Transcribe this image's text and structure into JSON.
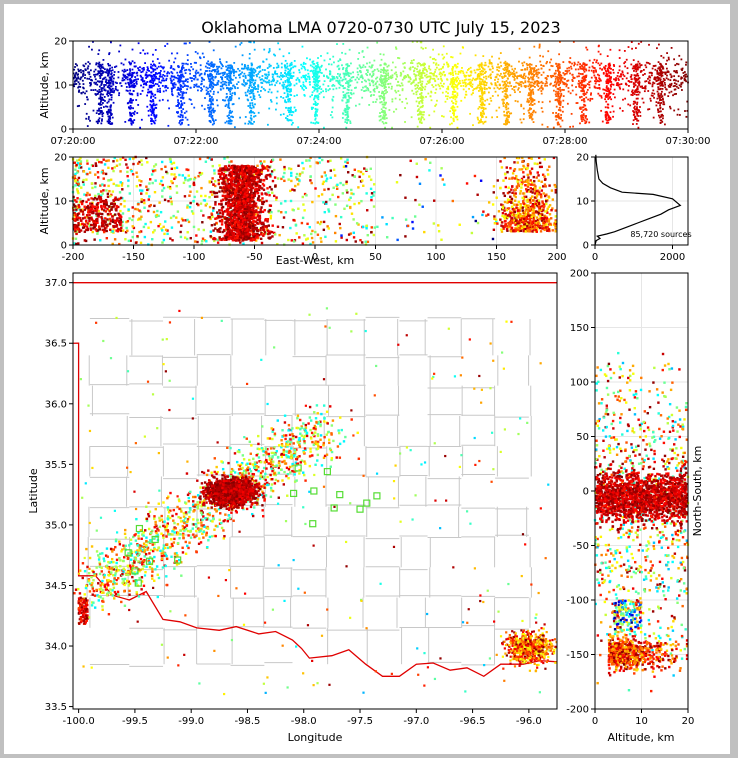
{
  "chart_data": [
    {
      "id": "time-height",
      "type": "scatter",
      "title": "Oklahoma LMA 0720-0730 UTC July 15, 2023",
      "xlabel": "",
      "ylabel": "Altitude, km",
      "x_ticks": [
        "07:20:00",
        "07:22:00",
        "07:24:00",
        "07:26:00",
        "07:28:00",
        "07:30:00"
      ],
      "x_range_minutes": [
        0,
        10
      ],
      "y_range": [
        0,
        20
      ],
      "y_ticks": [
        0,
        10,
        20
      ],
      "color_scale": "time (blue to dark red)",
      "color_stops": [
        "#00007f",
        "#0000ff",
        "#007fff",
        "#00ffff",
        "#7fff7f",
        "#ffff00",
        "#ff7f00",
        "#ff0000",
        "#7f0000"
      ],
      "vertical_streak_times": [
        0.45,
        0.6,
        0.95,
        1.3,
        1.75,
        2.25,
        2.55,
        2.9,
        3.5,
        3.95,
        4.45,
        5.05,
        5.65,
        6.2,
        6.65,
        7.05,
        7.45,
        7.9,
        8.3,
        8.7,
        9.15,
        9.55
      ]
    },
    {
      "id": "ew-height",
      "type": "scatter",
      "xlabel": "East-West, km",
      "ylabel": "Altitude, km",
      "x_range": [
        -200,
        200
      ],
      "x_ticks": [
        -200,
        -150,
        -100,
        -50,
        0,
        50,
        100,
        150,
        200
      ],
      "y_range": [
        0,
        20
      ],
      "y_ticks": [
        0,
        10,
        20
      ],
      "clusters": [
        {
          "x_center": -60,
          "x_spread": 12,
          "dense": true
        },
        {
          "x_center": 175,
          "x_spread": 15,
          "dense": true
        },
        {
          "x_center": -120,
          "x_spread": 70,
          "dense": false
        }
      ]
    },
    {
      "id": "altitude-histogram",
      "type": "line",
      "x_range": [
        0,
        2400
      ],
      "x_ticks": [
        0,
        2000
      ],
      "y_range": [
        0,
        20
      ],
      "y_ticks": [
        0,
        10,
        20
      ],
      "annotation": "85,720 sources",
      "profile": [
        [
          0,
          0
        ],
        [
          30,
          1
        ],
        [
          130,
          1.5
        ],
        [
          60,
          2
        ],
        [
          300,
          2.5
        ],
        [
          500,
          3
        ],
        [
          800,
          4
        ],
        [
          1100,
          5
        ],
        [
          1400,
          6
        ],
        [
          1700,
          7
        ],
        [
          1900,
          8
        ],
        [
          2200,
          9
        ],
        [
          2000,
          10.5
        ],
        [
          1500,
          11.5
        ],
        [
          700,
          12
        ],
        [
          400,
          13
        ],
        [
          200,
          14
        ],
        [
          100,
          15
        ],
        [
          60,
          17
        ],
        [
          30,
          19
        ],
        [
          20,
          20.5
        ]
      ]
    },
    {
      "id": "plan-view",
      "type": "scatter",
      "xlabel": "Longitude",
      "ylabel": "Latitude",
      "x_range": [
        -100.05,
        -95.75
      ],
      "x_ticks": [
        -100.0,
        -99.5,
        -99.0,
        -98.5,
        -98.0,
        -97.5,
        -97.0,
        -96.5,
        -96.0
      ],
      "y_range": [
        33.48,
        37.08
      ],
      "y_ticks": [
        33.5,
        34.0,
        34.5,
        35.0,
        35.5,
        36.0,
        36.5,
        37.0
      ],
      "stations": [
        [
          -98.05,
          35.47
        ],
        [
          -97.79,
          35.44
        ],
        [
          -98.09,
          35.26
        ],
        [
          -97.91,
          35.28
        ],
        [
          -97.68,
          35.25
        ],
        [
          -97.35,
          35.24
        ],
        [
          -97.44,
          35.18
        ],
        [
          -97.5,
          35.13
        ],
        [
          -97.73,
          35.14
        ],
        [
          -97.92,
          35.01
        ],
        [
          -99.46,
          34.97
        ],
        [
          -99.32,
          34.88
        ],
        [
          -99.56,
          34.77
        ],
        [
          -99.37,
          34.7
        ],
        [
          -99.12,
          34.71
        ],
        [
          -99.5,
          34.62
        ],
        [
          -99.47,
          34.52
        ]
      ],
      "dense_cores": [
        [
          -98.65,
          35.27
        ],
        [
          -96.05,
          33.97
        ]
      ]
    },
    {
      "id": "ns-height",
      "type": "scatter",
      "xlabel": "Altitude, km",
      "ylabel": "North-South, km",
      "x_range": [
        0,
        20
      ],
      "x_ticks": [
        0,
        10,
        20
      ],
      "y_range": [
        -200,
        200
      ],
      "y_ticks": [
        -200,
        -150,
        -100,
        -50,
        0,
        50,
        100,
        150,
        200
      ],
      "clusters": [
        {
          "y_center": -5,
          "y_spread": 12,
          "dense": true
        },
        {
          "y_center": -150,
          "y_spread": 10,
          "dense": true
        }
      ]
    }
  ]
}
